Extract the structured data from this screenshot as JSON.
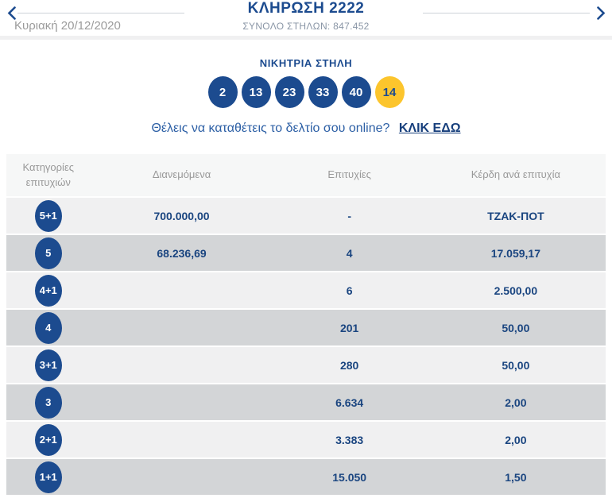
{
  "header": {
    "title": "ΚΛΗΡΩΣΗ 2222",
    "subtitle": "ΣΥΝΟΛΟ ΣΤΗΛΩΝ: 847.452",
    "date": "Κυριακή 20/12/2020",
    "icons": {
      "prev": "chevron-left-icon",
      "next": "chevron-right-icon"
    }
  },
  "winning": {
    "heading": "ΝΙΚΗΤΡΙΑ ΣΤΗΛΗ",
    "numbers": [
      "2",
      "13",
      "23",
      "33",
      "40"
    ],
    "bonus": "14"
  },
  "cta": {
    "question": "Θέλεις να καταθέτεις το δελτίο σου online?",
    "link_label": "ΚΛΙΚ ΕΔΩ"
  },
  "table": {
    "columns": [
      "Κατηγορίες επιτυχιών",
      "Διανεμόμενα",
      "Επιτυχίες",
      "Κέρδη ανά επιτυχία"
    ],
    "rows": [
      {
        "category": "5+1",
        "distributed": "700.000,00",
        "winners": "-",
        "prize": "ΤΖΑΚ-ΠΟΤ"
      },
      {
        "category": "5",
        "distributed": "68.236,69",
        "winners": "4",
        "prize": "17.059,17"
      },
      {
        "category": "4+1",
        "distributed": "",
        "winners": "6",
        "prize": "2.500,00"
      },
      {
        "category": "4",
        "distributed": "",
        "winners": "201",
        "prize": "50,00"
      },
      {
        "category": "3+1",
        "distributed": "",
        "winners": "280",
        "prize": "50,00"
      },
      {
        "category": "3",
        "distributed": "",
        "winners": "6.634",
        "prize": "2,00"
      },
      {
        "category": "2+1",
        "distributed": "",
        "winners": "3.383",
        "prize": "2,00"
      },
      {
        "category": "1+1",
        "distributed": "",
        "winners": "15.050",
        "prize": "1,50"
      }
    ]
  },
  "colors": {
    "brand_blue": "#1c4b8f",
    "navy_text": "#1a4580",
    "bonus_yellow": "#fcc52d",
    "row_light": "#f0f0f1",
    "row_dark": "#d3d5d7",
    "header_row_bg": "#f6f7f7",
    "muted_gray": "#9b9b9b",
    "subtitle_gray": "#8a96a6",
    "link_blue": "#2c5fa5",
    "divider": "#f0f0f1",
    "line_gray": "#cdd2d8"
  }
}
